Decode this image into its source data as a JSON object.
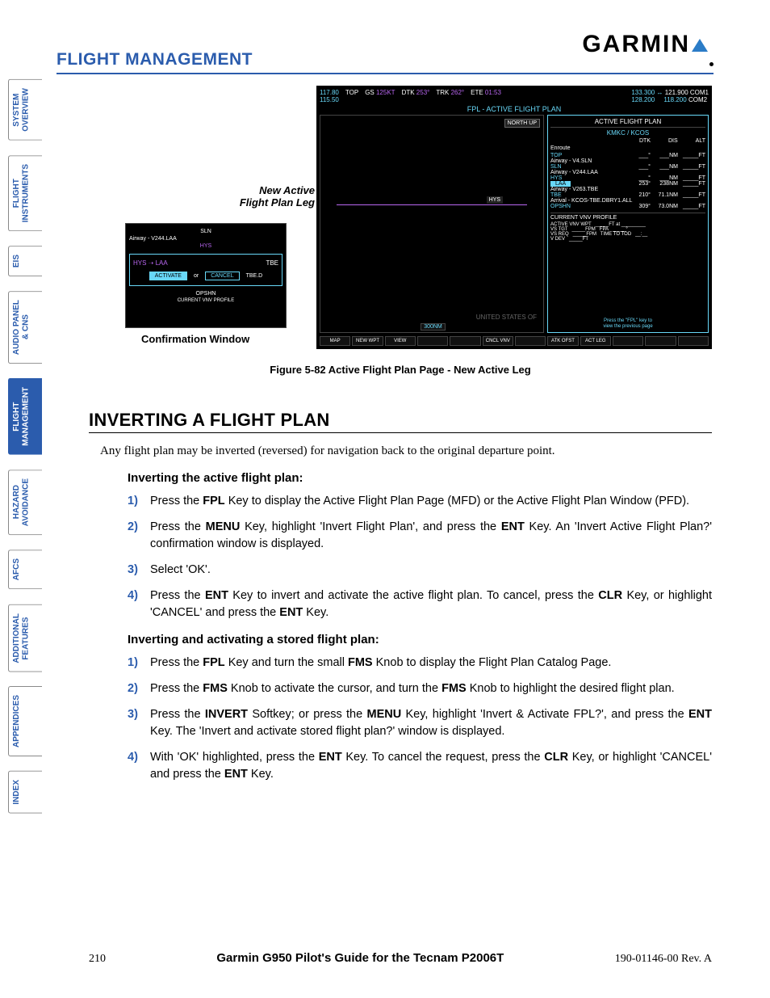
{
  "header": {
    "title": "FLIGHT MANAGEMENT",
    "logo": "GARMIN"
  },
  "sidebar": {
    "tabs": [
      {
        "label": "SYSTEM\nOVERVIEW",
        "active": false
      },
      {
        "label": "FLIGHT\nINSTRUMENTS",
        "active": false
      },
      {
        "label": "EIS",
        "active": false
      },
      {
        "label": "AUDIO PANEL\n& CNS",
        "active": false
      },
      {
        "label": "FLIGHT\nMANAGEMENT",
        "active": true
      },
      {
        "label": "HAZARD\nAVOIDANCE",
        "active": false
      },
      {
        "label": "AFCS",
        "active": false
      },
      {
        "label": "ADDITIONAL\nFEATURES",
        "active": false
      },
      {
        "label": "APPENDICES",
        "active": false
      },
      {
        "label": "INDEX",
        "active": false
      }
    ]
  },
  "figure": {
    "annot_leg": "New Active\nFlight Plan Leg",
    "annot_conf": "Confirmation Window",
    "caption": "Figure 5-82  Active Flight Plan Page - New Active Leg",
    "main": {
      "top": {
        "v1": "117.80",
        "v2": "115.50",
        "top_lbl": "TOP",
        "gs_lbl": "GS",
        "gs": "125KT",
        "dtk_lbl": "DTK",
        "dtk": "253°",
        "trk_lbl": "TRK",
        "trk": "262°",
        "ete_lbl": "ETE",
        "ete": "01:53",
        "f1": "133.300",
        "a1": "↔",
        "f2": "121.900",
        "c1": "COM1",
        "f3": "128.200",
        "f4": "118.200",
        "c2": "COM2"
      },
      "title": "FPL - ACTIVE FLIGHT PLAN",
      "northup": "NORTH UP",
      "map_wpt": "HYS",
      "usa": "UNITED STATES OF",
      "scale": "300NM",
      "panel": {
        "title": "ACTIVE FLIGHT PLAN",
        "route": "KMKC / KCOS",
        "cols": {
          "dtk": "DTK",
          "dis": "DIS",
          "alt": "ALT"
        },
        "enroute": "Enroute",
        "rows": [
          {
            "lbl": "TOP",
            "dtk": "___°",
            "dis": "___NM",
            "alt": "_____FT",
            "hl": false
          },
          {
            "lbl": "Airway - V4.SLN",
            "header": true
          },
          {
            "lbl": "SLN",
            "dtk": "___°",
            "dis": "___NM",
            "alt": "_____FT",
            "hl": false
          },
          {
            "lbl": "Airway - V244.LAA",
            "header": true
          },
          {
            "lbl": "HYS",
            "dtk": "___°",
            "dis": "___NM",
            "alt": "_____FT",
            "hl": false
          },
          {
            "lbl": "LAA",
            "dtk": "253°",
            "dis": "238NM",
            "alt": "_____FT",
            "hl": true
          },
          {
            "lbl": "Airway - V263.TBE",
            "header": true
          },
          {
            "lbl": "TBE",
            "dtk": "210°",
            "dis": "71.1NM",
            "alt": "_____FT",
            "hl": false
          },
          {
            "lbl": "Arrival - KCOS-TBE.DBRY1.ALL",
            "header": true
          },
          {
            "lbl": "OPSHN",
            "dtk": "309°",
            "dis": "73.0NM",
            "alt": "_____FT",
            "hl": false
          }
        ],
        "vnv_title": "CURRENT VNV PROFILE",
        "vnv": {
          "r1a": "ACTIVE VNV WPT",
          "r1b": "_____FT at _________",
          "r2a": "VS TGT",
          "r2b": "_____FPM",
          "r2c": "FPA",
          "r2d": "_____°",
          "r3a": "VS REQ",
          "r3b": "_____FPM",
          "r3c": "TIME TO TOD",
          "r3d": "__:__",
          "r4a": "V DEV",
          "r4b": "_____FT"
        },
        "hint": "Press the \"FPL\" key to\nview the previous page",
        "softkeys_left": [
          "MAP",
          "NEW WPT",
          "VIEW",
          "",
          "",
          "CNCL VNV"
        ],
        "softkeys_right": [
          "ATK OFST",
          "ACT LEG"
        ]
      }
    },
    "conf": {
      "rows": [
        "SLN",
        "Airway - V244.LAA",
        "HYS"
      ],
      "leg": "HYS ➝ LAA",
      "tbe": "TBE",
      "tbe2": "TBE.D",
      "activate": "ACTIVATE",
      "or": "or",
      "cancel": "CANCEL",
      "opshn": "OPSHN",
      "curvnv": "CURRENT VNV PROFILE"
    }
  },
  "section": {
    "title": "Inverting a Flight Plan",
    "intro": "Any flight plan may be inverted (reversed) for navigation back to the original departure point.",
    "sub1": "Inverting the active flight plan:",
    "steps1": [
      {
        "n": "1)",
        "pre": "Press the ",
        "k1": "FPL",
        "post": " Key to display the Active Flight Plan Page (MFD) or the Active Flight Plan Window (PFD)."
      },
      {
        "n": "2)",
        "t": "Press the <b>MENU</b> Key, highlight 'Invert Flight Plan', and press the <b>ENT</b> Key.  An 'Invert Active Flight Plan?' confirmation window is displayed."
      },
      {
        "n": "3)",
        "t": "Select 'OK'."
      },
      {
        "n": "4)",
        "t": "Press the <b>ENT</b> Key to invert and activate the active flight plan.  To cancel, press the <b>CLR</b> Key, or highlight 'CANCEL' and press the <b>ENT</b> Key."
      }
    ],
    "sub2": "Inverting and activating a stored flight plan:",
    "steps2": [
      {
        "n": "1)",
        "t": "Press the <b>FPL</b> Key and turn the small <b>FMS</b> Knob to display the Flight Plan Catalog Page."
      },
      {
        "n": "2)",
        "t": "Press the <b>FMS</b> Knob to activate the cursor, and turn the <b>FMS</b> Knob to highlight the desired flight plan."
      },
      {
        "n": "3)",
        "t": "Press the <b>INVERT</b> Softkey; or press the <b>MENU</b> Key, highlight 'Invert & Activate FPL?', and press the <b>ENT</b> Key. The 'Invert and activate stored flight plan?' window is displayed."
      },
      {
        "n": "4)",
        "t": "With 'OK' highlighted, press the <b>ENT</b> Key.  To cancel the request, press the <b>CLR</b> Key, or highlight 'CANCEL' and press the <b>ENT</b> Key."
      }
    ]
  },
  "footer": {
    "page": "210",
    "title": "Garmin G950 Pilot's Guide for the Tecnam P2006T",
    "rev": "190-01146-00  Rev. A"
  }
}
